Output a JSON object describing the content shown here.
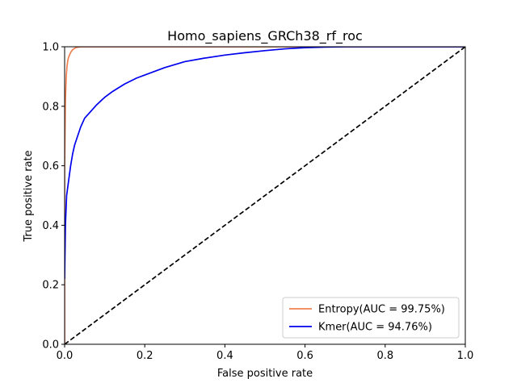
{
  "chart_data": {
    "type": "line",
    "title": "Homo_sapiens_GRCh38_rf_roc",
    "xlabel": "False positive rate",
    "ylabel": "True positive rate",
    "xlim": [
      0,
      1
    ],
    "ylim": [
      0,
      1
    ],
    "xticks": [
      "0.0",
      "0.2",
      "0.4",
      "0.6",
      "0.8",
      "1.0"
    ],
    "yticks": [
      "0.0",
      "0.2",
      "0.4",
      "0.6",
      "0.8",
      "1.0"
    ],
    "grid": false,
    "legend_position": "lower right",
    "series": [
      {
        "name": "Entropy(AUC = 99.75%)",
        "color": "#f08050",
        "style": "solid",
        "x": [
          0,
          0,
          0.002,
          0.004,
          0.006,
          0.008,
          0.01,
          0.013,
          0.016,
          0.02,
          0.025,
          0.03,
          0.04,
          0.06,
          0.1,
          0.2,
          0.4,
          0.6,
          0.8,
          1.0
        ],
        "y": [
          0,
          0.6,
          0.82,
          0.9,
          0.935,
          0.955,
          0.965,
          0.975,
          0.983,
          0.99,
          0.995,
          0.998,
          1.0,
          1.0,
          1.0,
          1.0,
          1.0,
          1.0,
          1.0,
          1.0
        ]
      },
      {
        "name": "Kmer(AUC = 94.76%)",
        "color": "#0000ee",
        "style": "solid",
        "x": [
          0,
          0.002,
          0.005,
          0.01,
          0.015,
          0.02,
          0.025,
          0.03,
          0.04,
          0.05,
          0.06,
          0.08,
          0.1,
          0.12,
          0.15,
          0.18,
          0.2,
          0.25,
          0.3,
          0.35,
          0.4,
          0.45,
          0.5,
          0.55,
          0.6,
          0.65,
          0.7,
          1.0
        ],
        "y": [
          0.22,
          0.4,
          0.5,
          0.55,
          0.6,
          0.64,
          0.67,
          0.69,
          0.73,
          0.76,
          0.775,
          0.805,
          0.83,
          0.85,
          0.875,
          0.895,
          0.905,
          0.93,
          0.95,
          0.962,
          0.972,
          0.98,
          0.987,
          0.993,
          0.997,
          0.999,
          1.0,
          1.0
        ]
      },
      {
        "name": "",
        "color": "#000000",
        "style": "dashed",
        "x": [
          0,
          1
        ],
        "y": [
          0,
          1
        ]
      }
    ]
  }
}
